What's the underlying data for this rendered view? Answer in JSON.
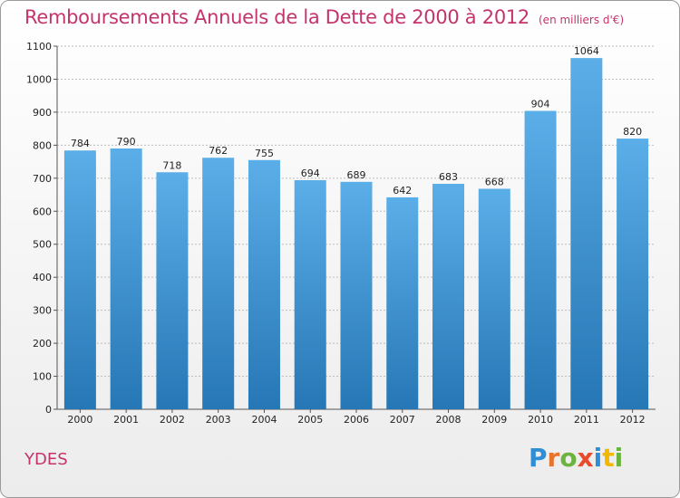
{
  "chart_data": {
    "type": "bar",
    "title": "Remboursements Annuels de la Dette de 2000 à 2012",
    "subtitle": "(en milliers d'€)",
    "categories": [
      "2000",
      "2001",
      "2002",
      "2003",
      "2004",
      "2005",
      "2006",
      "2007",
      "2008",
      "2009",
      "2010",
      "2011",
      "2012"
    ],
    "values": [
      784,
      790,
      718,
      762,
      755,
      694,
      689,
      642,
      683,
      668,
      904,
      1064,
      820
    ],
    "ylim": [
      0,
      1100
    ],
    "yticks": [
      0,
      100,
      200,
      300,
      400,
      500,
      600,
      700,
      800,
      900,
      1000,
      1100
    ],
    "grid": true,
    "bar_color_top": "#5baee8",
    "bar_color_bottom": "#2677b5"
  },
  "footer": {
    "commune": "YDES",
    "logo_letters": [
      {
        "ch": "P",
        "color": "#2e8fd6"
      },
      {
        "ch": "r",
        "color": "#e8732a"
      },
      {
        "ch": "o",
        "color": "#6cb33f"
      },
      {
        "ch": "x",
        "color": "#e84a2a"
      },
      {
        "ch": "i",
        "color": "#2e8fd6"
      },
      {
        "ch": "t",
        "color": "#f2b800"
      },
      {
        "ch": "i",
        "color": "#6cb33f"
      }
    ]
  },
  "colors": {
    "title": "#c4346c",
    "grid": "#bdbdbd",
    "axis": "#555555"
  }
}
